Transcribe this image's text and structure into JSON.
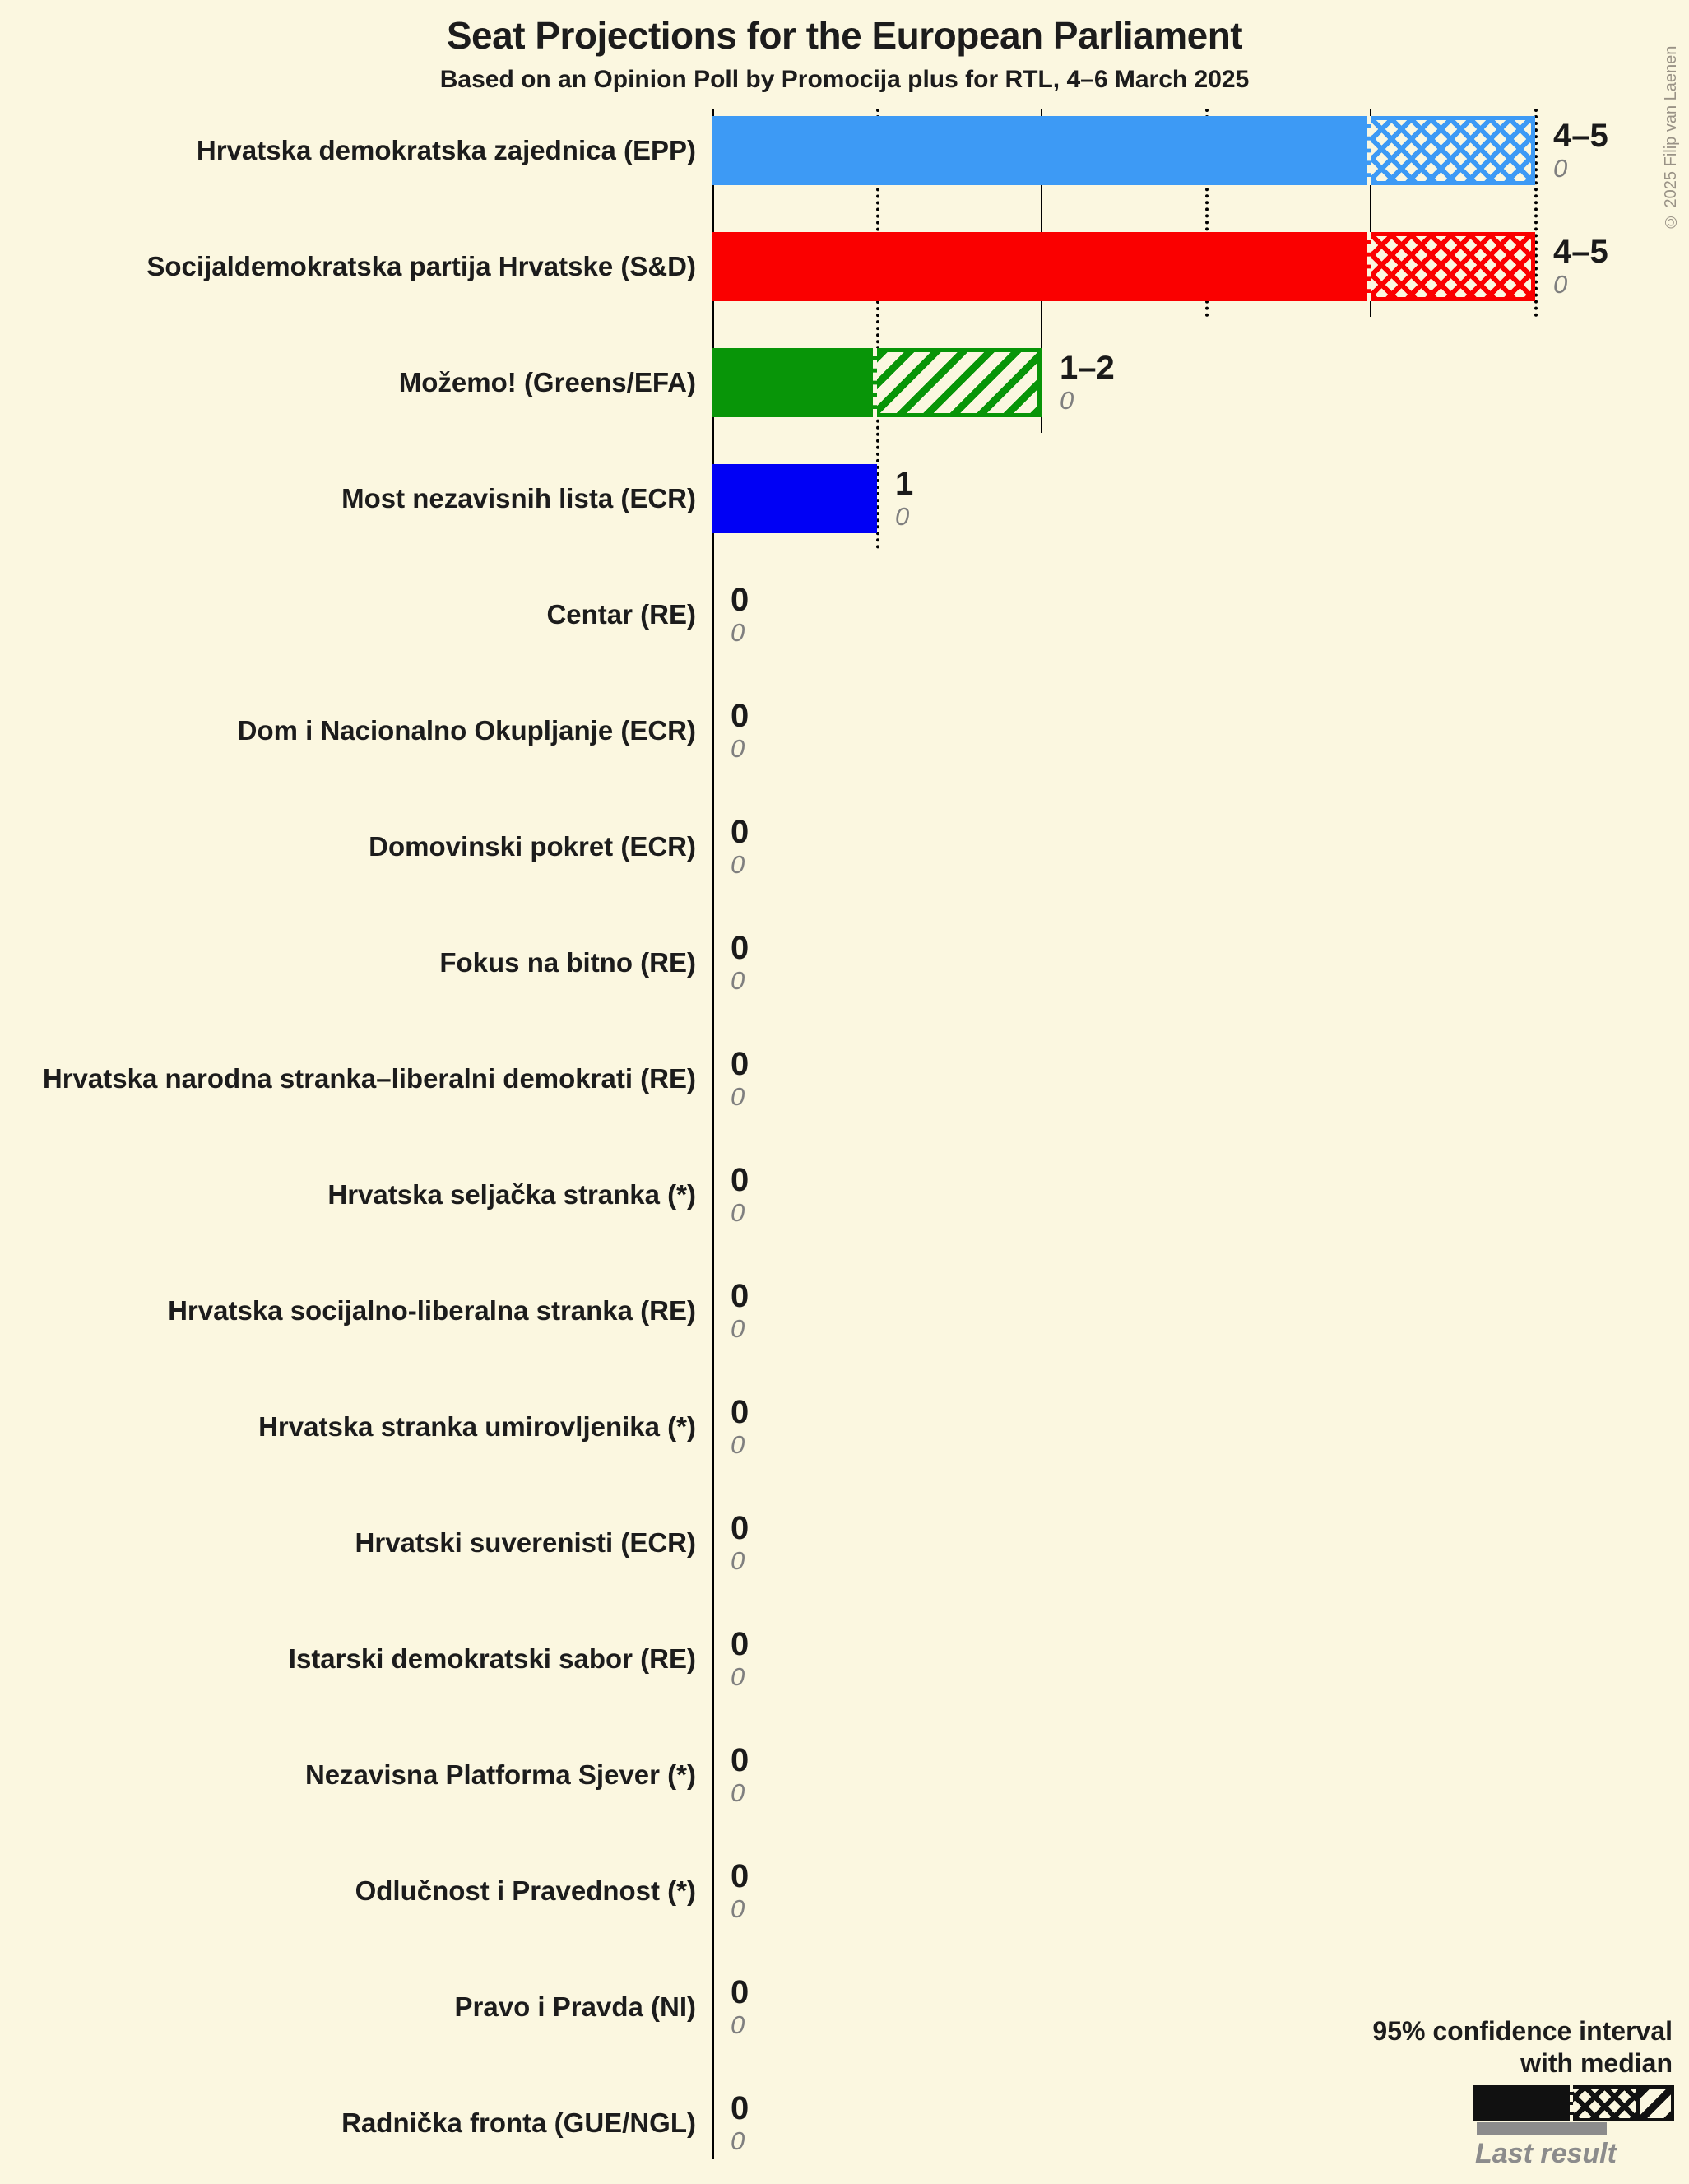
{
  "title": "Seat Projections for the European Parliament",
  "subtitle": "Based on an Opinion Poll by Promocija plus for RTL, 4–6 March 2025",
  "copyright": "© 2025 Filip van Laenen",
  "colors": {
    "background": "#FBF7E0",
    "grid": "#000000",
    "value_text": "#1A1A1A",
    "label_text": "#1C1C1C",
    "last_result": "#8C8C8C",
    "legend_sample": "#111111"
  },
  "legend": {
    "line1": "95% confidence interval",
    "line2": "with median",
    "last_result_label": "Last result"
  },
  "chart_data": {
    "type": "bar",
    "orientation": "horizontal",
    "x_axis": {
      "min": 0,
      "max": 5,
      "gridline_interval": 1,
      "solid_gridlines": [
        2,
        4
      ],
      "dotted_gridlines": [
        1,
        3,
        5
      ]
    },
    "unit": "seats",
    "parties": [
      {
        "name": "Hrvatska demokratska zajednica (EPP)",
        "group": "EPP",
        "color": "#3D9AF5",
        "hatch": "cross",
        "ci_low": 4,
        "median": 4,
        "ci_high": 5,
        "label": "4–5",
        "last_result": "0"
      },
      {
        "name": "Socijaldemokratska partija Hrvatske (S&D)",
        "group": "S&D",
        "color": "#FA0000",
        "hatch": "cross",
        "ci_low": 4,
        "median": 4,
        "ci_high": 5,
        "label": "4–5",
        "last_result": "0"
      },
      {
        "name": "Možemo! (Greens/EFA)",
        "group": "Greens/EFA",
        "color": "#089508",
        "hatch": "diag",
        "ci_low": 1,
        "median": 1,
        "ci_high": 2,
        "label": "1–2",
        "last_result": "0"
      },
      {
        "name": "Most nezavisnih lista (ECR)",
        "group": "ECR",
        "color": "#0000F5",
        "hatch": "none",
        "ci_low": 1,
        "median": 1,
        "ci_high": 1,
        "label": "1",
        "last_result": "0"
      },
      {
        "name": "Centar (RE)",
        "group": "RE",
        "color": "#888888",
        "hatch": "none",
        "ci_low": 0,
        "median": 0,
        "ci_high": 0,
        "label": "0",
        "last_result": "0"
      },
      {
        "name": "Dom i Nacionalno Okupljanje (ECR)",
        "group": "ECR",
        "color": "#888888",
        "hatch": "none",
        "ci_low": 0,
        "median": 0,
        "ci_high": 0,
        "label": "0",
        "last_result": "0"
      },
      {
        "name": "Domovinski pokret (ECR)",
        "group": "ECR",
        "color": "#888888",
        "hatch": "none",
        "ci_low": 0,
        "median": 0,
        "ci_high": 0,
        "label": "0",
        "last_result": "0"
      },
      {
        "name": "Fokus na bitno (RE)",
        "group": "RE",
        "color": "#888888",
        "hatch": "none",
        "ci_low": 0,
        "median": 0,
        "ci_high": 0,
        "label": "0",
        "last_result": "0"
      },
      {
        "name": "Hrvatska narodna stranka–liberalni demokrati (RE)",
        "group": "RE",
        "color": "#888888",
        "hatch": "none",
        "ci_low": 0,
        "median": 0,
        "ci_high": 0,
        "label": "0",
        "last_result": "0"
      },
      {
        "name": "Hrvatska seljačka stranka (*)",
        "group": "*",
        "color": "#888888",
        "hatch": "none",
        "ci_low": 0,
        "median": 0,
        "ci_high": 0,
        "label": "0",
        "last_result": "0"
      },
      {
        "name": "Hrvatska socijalno-liberalna stranka (RE)",
        "group": "RE",
        "color": "#888888",
        "hatch": "none",
        "ci_low": 0,
        "median": 0,
        "ci_high": 0,
        "label": "0",
        "last_result": "0"
      },
      {
        "name": "Hrvatska stranka umirovljenika (*)",
        "group": "*",
        "color": "#888888",
        "hatch": "none",
        "ci_low": 0,
        "median": 0,
        "ci_high": 0,
        "label": "0",
        "last_result": "0"
      },
      {
        "name": "Hrvatski suverenisti (ECR)",
        "group": "ECR",
        "color": "#888888",
        "hatch": "none",
        "ci_low": 0,
        "median": 0,
        "ci_high": 0,
        "label": "0",
        "last_result": "0"
      },
      {
        "name": "Istarski demokratski sabor (RE)",
        "group": "RE",
        "color": "#888888",
        "hatch": "none",
        "ci_low": 0,
        "median": 0,
        "ci_high": 0,
        "label": "0",
        "last_result": "0"
      },
      {
        "name": "Nezavisna Platforma Sjever (*)",
        "group": "*",
        "color": "#888888",
        "hatch": "none",
        "ci_low": 0,
        "median": 0,
        "ci_high": 0,
        "label": "0",
        "last_result": "0"
      },
      {
        "name": "Odlučnost i Pravednost (*)",
        "group": "*",
        "color": "#888888",
        "hatch": "none",
        "ci_low": 0,
        "median": 0,
        "ci_high": 0,
        "label": "0",
        "last_result": "0"
      },
      {
        "name": "Pravo i Pravda (NI)",
        "group": "NI",
        "color": "#888888",
        "hatch": "none",
        "ci_low": 0,
        "median": 0,
        "ci_high": 0,
        "label": "0",
        "last_result": "0"
      },
      {
        "name": "Radnička fronta (GUE/NGL)",
        "group": "GUE/NGL",
        "color": "#888888",
        "hatch": "none",
        "ci_low": 0,
        "median": 0,
        "ci_high": 0,
        "label": "0",
        "last_result": "0"
      }
    ]
  }
}
